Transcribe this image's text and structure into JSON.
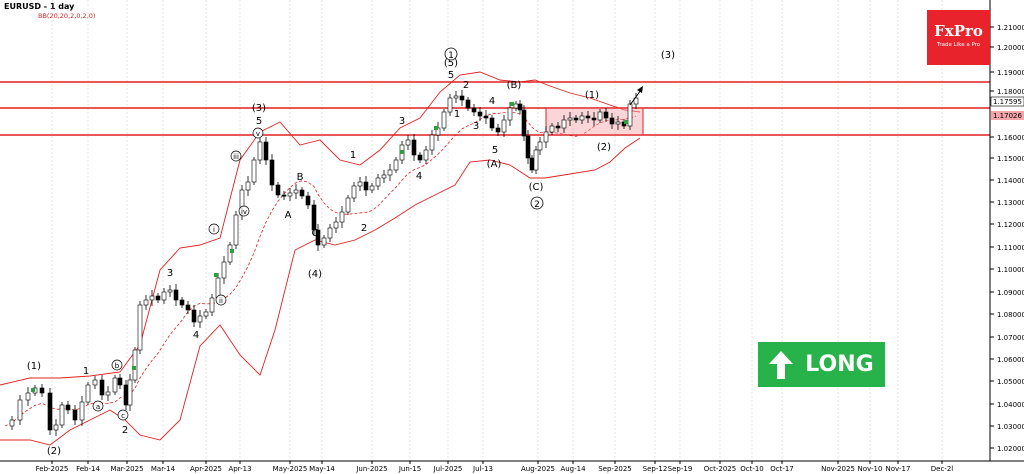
{
  "header": {
    "symbol_tf": "EURUSD - 1 day",
    "indicator": "BB(20,20,2,0,2,0)"
  },
  "logo": {
    "brand": "FxPro",
    "tagline": "Trade Like a Pro",
    "color": "#e8232b"
  },
  "signal": {
    "label": "LONG",
    "color": "#27b24a",
    "icon": "up-arrow-icon"
  },
  "chart_data": {
    "type": "candlestick",
    "y_ticks": [
      1.21,
      1.2,
      1.19,
      1.18,
      1.16,
      1.15,
      1.14,
      1.13,
      1.12,
      1.11,
      1.1,
      1.09,
      1.08,
      1.07,
      1.06,
      1.05,
      1.04,
      1.03,
      1.02
    ],
    "ylim": [
      1.01,
      1.22
    ],
    "x_tick_labels": [
      "Feb-2025",
      "Feb-14",
      "Mar-2025",
      "Mar-14",
      "Apr-2025",
      "Apr-13",
      "May-2025",
      "May-14",
      "Jun-2025",
      "Jun-15",
      "Jul-2025",
      "Jul-13",
      "Aug-2025",
      "Aug-14",
      "Sep-2025",
      "Sep-12",
      "Sep-19",
      "Oct-2025",
      "Oct-10",
      "Oct-17",
      "Nov-2025",
      "Nov-10",
      "Nov-17",
      "Dec-2l"
    ],
    "current_price": "1.17595",
    "zone_price": "1.17026",
    "resistance_levels": [
      1.1845,
      1.1705,
      1.1598
    ],
    "colors": {
      "bull": "#2e9e3e",
      "bear": "#000000",
      "band": "#e02020",
      "level": "#e02020",
      "zone": "#f4a5aa"
    },
    "wave_labels": [
      "(1)",
      "(2)",
      "1",
      "2",
      "a",
      "b",
      "c",
      "3",
      "4",
      "i",
      "ii",
      "iii",
      "iv",
      "v",
      "(3)",
      "5",
      "A",
      "B",
      "C",
      "(4)",
      "1",
      "2",
      "3",
      "4",
      "5",
      "(5)",
      "(A)",
      "(B)",
      "(C)",
      "3",
      "4",
      "(1)",
      "(2)",
      "(3)",
      "1",
      "2",
      "5"
    ]
  }
}
